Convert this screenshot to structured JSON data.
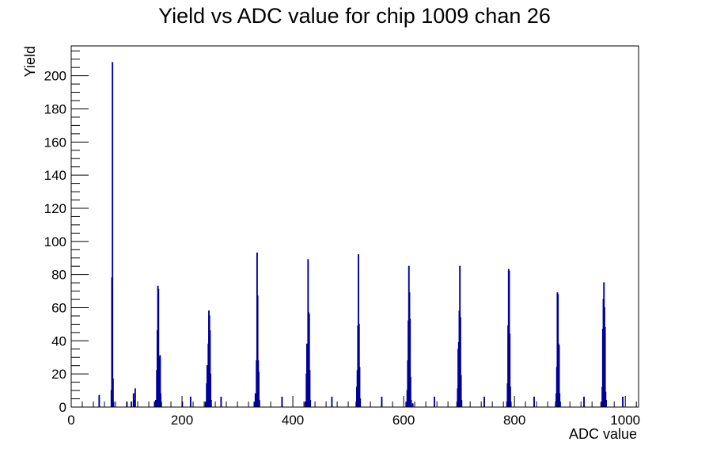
{
  "chart_data": {
    "type": "bar",
    "title": "Yield vs ADC value for chip 1009 chan 26",
    "xlabel": "ADC value",
    "ylabel": "Yield",
    "xlim": [
      0,
      1024
    ],
    "ylim": [
      0,
      218
    ],
    "x_ticks": [
      0,
      200,
      400,
      600,
      800,
      1000
    ],
    "y_ticks": [
      0,
      20,
      40,
      60,
      80,
      100,
      120,
      140,
      160,
      180,
      200
    ],
    "grid": false,
    "bin_width": 1,
    "line_color": "#000099",
    "bins": [
      {
        "x": 50,
        "y": 7
      },
      {
        "x": 72,
        "y": 10
      },
      {
        "x": 73,
        "y": 78
      },
      {
        "x": 74,
        "y": 208
      },
      {
        "x": 75,
        "y": 17
      },
      {
        "x": 76,
        "y": 3
      },
      {
        "x": 100,
        "y": 3
      },
      {
        "x": 108,
        "y": 3
      },
      {
        "x": 112,
        "y": 8
      },
      {
        "x": 114,
        "y": 4
      },
      {
        "x": 115,
        "y": 11
      },
      {
        "x": 150,
        "y": 3
      },
      {
        "x": 152,
        "y": 4
      },
      {
        "x": 154,
        "y": 22
      },
      {
        "x": 155,
        "y": 46
      },
      {
        "x": 156,
        "y": 73
      },
      {
        "x": 157,
        "y": 71
      },
      {
        "x": 158,
        "y": 30
      },
      {
        "x": 159,
        "y": 24
      },
      {
        "x": 160,
        "y": 31
      },
      {
        "x": 161,
        "y": 8
      },
      {
        "x": 162,
        "y": 3
      },
      {
        "x": 200,
        "y": 3
      },
      {
        "x": 215,
        "y": 6
      },
      {
        "x": 242,
        "y": 3
      },
      {
        "x": 244,
        "y": 14
      },
      {
        "x": 245,
        "y": 25
      },
      {
        "x": 246,
        "y": 23
      },
      {
        "x": 247,
        "y": 38
      },
      {
        "x": 248,
        "y": 58
      },
      {
        "x": 249,
        "y": 55
      },
      {
        "x": 250,
        "y": 46
      },
      {
        "x": 251,
        "y": 20
      },
      {
        "x": 252,
        "y": 4
      },
      {
        "x": 270,
        "y": 6
      },
      {
        "x": 330,
        "y": 3
      },
      {
        "x": 332,
        "y": 8
      },
      {
        "x": 334,
        "y": 28
      },
      {
        "x": 335,
        "y": 93
      },
      {
        "x": 336,
        "y": 67
      },
      {
        "x": 337,
        "y": 28
      },
      {
        "x": 338,
        "y": 21
      },
      {
        "x": 339,
        "y": 4
      },
      {
        "x": 380,
        "y": 6
      },
      {
        "x": 422,
        "y": 3
      },
      {
        "x": 424,
        "y": 20
      },
      {
        "x": 425,
        "y": 38
      },
      {
        "x": 426,
        "y": 14
      },
      {
        "x": 427,
        "y": 89
      },
      {
        "x": 428,
        "y": 57
      },
      {
        "x": 429,
        "y": 56
      },
      {
        "x": 430,
        "y": 22
      },
      {
        "x": 431,
        "y": 4
      },
      {
        "x": 470,
        "y": 6
      },
      {
        "x": 514,
        "y": 3
      },
      {
        "x": 515,
        "y": 12
      },
      {
        "x": 516,
        "y": 22
      },
      {
        "x": 517,
        "y": 49
      },
      {
        "x": 518,
        "y": 92
      },
      {
        "x": 519,
        "y": 50
      },
      {
        "x": 520,
        "y": 24
      },
      {
        "x": 521,
        "y": 5
      },
      {
        "x": 560,
        "y": 6
      },
      {
        "x": 604,
        "y": 3
      },
      {
        "x": 606,
        "y": 10
      },
      {
        "x": 607,
        "y": 28
      },
      {
        "x": 608,
        "y": 52
      },
      {
        "x": 609,
        "y": 85
      },
      {
        "x": 610,
        "y": 69
      },
      {
        "x": 611,
        "y": 53
      },
      {
        "x": 612,
        "y": 18
      },
      {
        "x": 613,
        "y": 4
      },
      {
        "x": 616,
        "y": 2
      },
      {
        "x": 655,
        "y": 6
      },
      {
        "x": 696,
        "y": 3
      },
      {
        "x": 697,
        "y": 11
      },
      {
        "x": 698,
        "y": 35
      },
      {
        "x": 699,
        "y": 39
      },
      {
        "x": 700,
        "y": 58
      },
      {
        "x": 701,
        "y": 85
      },
      {
        "x": 702,
        "y": 54
      },
      {
        "x": 703,
        "y": 19
      },
      {
        "x": 704,
        "y": 4
      },
      {
        "x": 745,
        "y": 6
      },
      {
        "x": 786,
        "y": 3
      },
      {
        "x": 787,
        "y": 14
      },
      {
        "x": 788,
        "y": 49
      },
      {
        "x": 789,
        "y": 83
      },
      {
        "x": 790,
        "y": 82
      },
      {
        "x": 791,
        "y": 44
      },
      {
        "x": 792,
        "y": 12
      },
      {
        "x": 793,
        "y": 3
      },
      {
        "x": 835,
        "y": 6
      },
      {
        "x": 874,
        "y": 3
      },
      {
        "x": 875,
        "y": 8
      },
      {
        "x": 876,
        "y": 24
      },
      {
        "x": 877,
        "y": 69
      },
      {
        "x": 878,
        "y": 68
      },
      {
        "x": 879,
        "y": 38
      },
      {
        "x": 880,
        "y": 37
      },
      {
        "x": 881,
        "y": 8
      },
      {
        "x": 882,
        "y": 3
      },
      {
        "x": 925,
        "y": 6
      },
      {
        "x": 956,
        "y": 3
      },
      {
        "x": 958,
        "y": 12
      },
      {
        "x": 959,
        "y": 47
      },
      {
        "x": 960,
        "y": 65
      },
      {
        "x": 961,
        "y": 75
      },
      {
        "x": 962,
        "y": 60
      },
      {
        "x": 963,
        "y": 48
      },
      {
        "x": 964,
        "y": 9
      },
      {
        "x": 965,
        "y": 4
      },
      {
        "x": 995,
        "y": 6
      }
    ]
  }
}
